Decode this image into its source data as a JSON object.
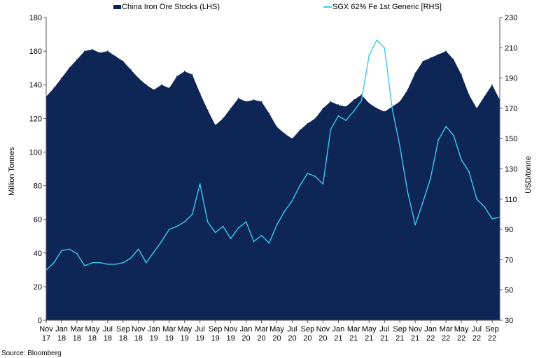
{
  "chart_data": {
    "type": "area",
    "secondary_type": "line",
    "source": "Source: Bloomberg",
    "ylabel_left": "Million Tonnes",
    "ylabel_right": "USD/tonne",
    "ylim_left": [
      0,
      180
    ],
    "ylim_right": [
      30,
      230
    ],
    "yticks_left": [
      0,
      20,
      40,
      60,
      80,
      100,
      120,
      140,
      160,
      180
    ],
    "yticks_right": [
      30,
      50,
      70,
      90,
      110,
      130,
      150,
      170,
      190,
      210,
      230
    ],
    "grid": false,
    "legend_position": "top",
    "colors": {
      "stocks": "#0d2656",
      "price": "#3cc8ee",
      "axis": "#555555"
    },
    "x_months": [
      "2017-11",
      "2017-12",
      "2018-01",
      "2018-02",
      "2018-03",
      "2018-04",
      "2018-05",
      "2018-06",
      "2018-07",
      "2018-08",
      "2018-09",
      "2018-10",
      "2018-11",
      "2018-12",
      "2019-01",
      "2019-02",
      "2019-03",
      "2019-04",
      "2019-05",
      "2019-06",
      "2019-07",
      "2019-08",
      "2019-09",
      "2019-10",
      "2019-11",
      "2019-12",
      "2020-01",
      "2020-02",
      "2020-03",
      "2020-04",
      "2020-05",
      "2020-06",
      "2020-07",
      "2020-08",
      "2020-09",
      "2020-10",
      "2020-11",
      "2020-12",
      "2021-01",
      "2021-02",
      "2021-03",
      "2021-04",
      "2021-05",
      "2021-06",
      "2021-07",
      "2021-08",
      "2021-09",
      "2021-10",
      "2021-11",
      "2021-12",
      "2022-01",
      "2022-02",
      "2022-03",
      "2022-04",
      "2022-05",
      "2022-06",
      "2022-07",
      "2022-08",
      "2022-09",
      "2022-10"
    ],
    "tick_labels": [
      {
        "month": "Nov",
        "year": "17"
      },
      {
        "month": "Jan",
        "year": "18"
      },
      {
        "month": "Mar",
        "year": "18"
      },
      {
        "month": "May",
        "year": "18"
      },
      {
        "month": "Jul",
        "year": "18"
      },
      {
        "month": "Sep",
        "year": "18"
      },
      {
        "month": "Nov",
        "year": "18"
      },
      {
        "month": "Jan",
        "year": "19"
      },
      {
        "month": "Mar",
        "year": "19"
      },
      {
        "month": "May",
        "year": "19"
      },
      {
        "month": "Jul",
        "year": "19"
      },
      {
        "month": "Sep",
        "year": "19"
      },
      {
        "month": "Nov",
        "year": "19"
      },
      {
        "month": "Jan",
        "year": "20"
      },
      {
        "month": "Mar",
        "year": "20"
      },
      {
        "month": "May",
        "year": "20"
      },
      {
        "month": "Jul",
        "year": "20"
      },
      {
        "month": "Sep",
        "year": "20"
      },
      {
        "month": "Nov",
        "year": "20"
      },
      {
        "month": "Jan",
        "year": "21"
      },
      {
        "month": "Mar",
        "year": "21"
      },
      {
        "month": "May",
        "year": "21"
      },
      {
        "month": "Jul",
        "year": "21"
      },
      {
        "month": "Sep",
        "year": "21"
      },
      {
        "month": "Nov",
        "year": "21"
      },
      {
        "month": "Jan",
        "year": "22"
      },
      {
        "month": "Mar",
        "year": "22"
      },
      {
        "month": "May",
        "year": "22"
      },
      {
        "month": "Jul",
        "year": "22"
      },
      {
        "month": "Sep",
        "year": "22"
      }
    ],
    "series": [
      {
        "name": "China Iron Ore Stocks (LHS)",
        "axis": "left",
        "values": [
          133,
          138,
          144,
          150,
          155,
          160,
          161,
          159,
          160,
          157,
          154,
          149,
          144,
          140,
          137,
          140,
          138,
          145,
          148,
          146,
          135,
          125,
          116,
          120,
          126,
          132,
          130,
          131,
          130,
          123,
          115,
          111,
          108,
          113,
          117,
          120,
          126,
          130,
          128,
          127,
          131,
          134,
          129,
          126,
          124,
          127,
          130,
          137,
          147,
          154,
          156,
          158,
          160,
          155,
          146,
          134,
          126,
          133,
          140,
          131
        ]
      },
      {
        "name": "SGX 62% Fe 1st Generic [RHS]",
        "axis": "right",
        "values": [
          63,
          68,
          76,
          77,
          74,
          66,
          68,
          68,
          67,
          67,
          68,
          71,
          77,
          68,
          75,
          82,
          90,
          92,
          95,
          100,
          120,
          95,
          88,
          92,
          84,
          91,
          95,
          82,
          86,
          81,
          93,
          102,
          109,
          119,
          127,
          125,
          120,
          156,
          165,
          162,
          168,
          175,
          205,
          215,
          210,
          170,
          145,
          115,
          93,
          108,
          124,
          149,
          158,
          152,
          136,
          128,
          110,
          105,
          97,
          98
        ]
      }
    ]
  }
}
